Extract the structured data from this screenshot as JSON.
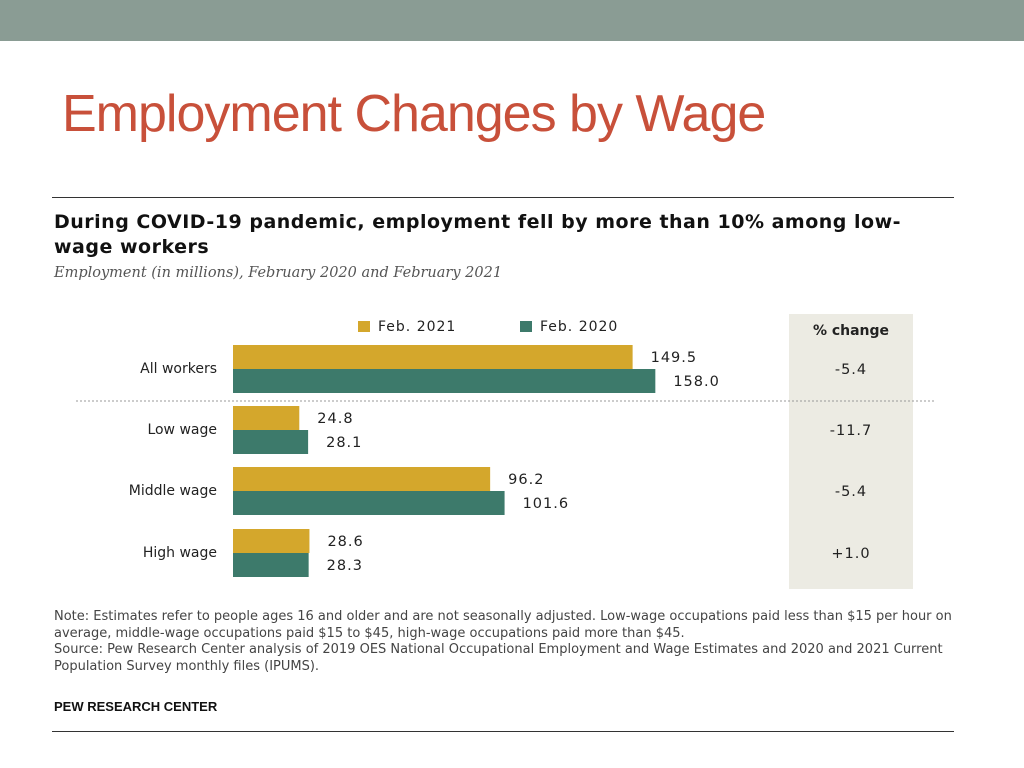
{
  "slide": {
    "title": "Employment Changes by Wage"
  },
  "chart_data": {
    "type": "bar",
    "orientation": "horizontal",
    "title": "During COVID-19 pandemic, employment fell by more than 10% among low-wage workers",
    "subtitle": "Employment (in millions), February 2020 and February 2021",
    "categories": [
      "All workers",
      "Low wage",
      "Middle wage",
      "High wage"
    ],
    "series": [
      {
        "name": "Feb. 2021",
        "color": "#d4a72c",
        "values": [
          149.5,
          24.8,
          96.2,
          28.6
        ]
      },
      {
        "name": "Feb. 2020",
        "color": "#3d7a6b",
        "values": [
          158.0,
          28.1,
          101.6,
          28.3
        ]
      }
    ],
    "value_labels": [
      [
        "149.5",
        "24.8",
        "96.2",
        "28.6"
      ],
      [
        "158.0",
        "28.1",
        "101.6",
        "28.3"
      ]
    ],
    "pct_change_header": "% change",
    "pct_change": [
      "-5.4",
      "-11.7",
      "-5.4",
      "+1.0"
    ],
    "legend_position": "top",
    "grid": false
  },
  "note": "Note: Estimates refer to people ages 16 and older and are not seasonally adjusted. Low-wage occupations paid less than $15 per hour on average, middle-wage occupations paid $15 to $45, high-wage occupations paid more than $45.",
  "source": "Source: Pew Research Center analysis of 2019 OES National Occupational Employment and Wage Estimates and 2020 and 2021 Current Population Survey monthly files (IPUMS).",
  "credit": "PEW RESEARCH CENTER"
}
